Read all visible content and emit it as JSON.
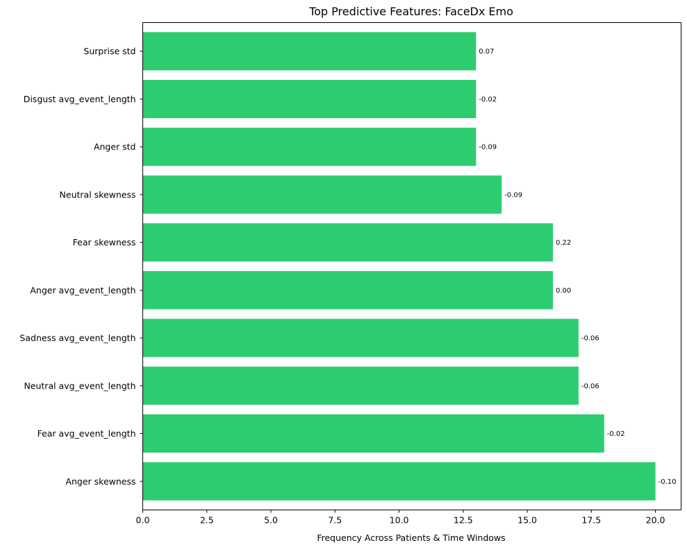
{
  "chart_data": {
    "type": "bar",
    "orientation": "horizontal",
    "title": "Top Predictive Features: FaceDx Emo",
    "xlabel": "Frequency Across Patients & Time Windows",
    "ylabel": "",
    "xlim": [
      0,
      21
    ],
    "xticks": [
      "0.0",
      "2.5",
      "5.0",
      "7.5",
      "10.0",
      "12.5",
      "15.0",
      "17.5",
      "20.0"
    ],
    "xtick_values": [
      0,
      2.5,
      5,
      7.5,
      10,
      12.5,
      15,
      17.5,
      20
    ],
    "grid": false,
    "bar_color": "#2ecc71",
    "categories": [
      "Surprise std",
      "Disgust avg_event_length",
      "Anger std",
      "Neutral skewness",
      "Fear skewness",
      "Anger avg_event_length",
      "Sadness avg_event_length",
      "Neutral avg_event_length",
      "Fear avg_event_length",
      "Anger skewness"
    ],
    "values": [
      13,
      13,
      13,
      14,
      16,
      16,
      17,
      17,
      18,
      20
    ],
    "data_labels": [
      "0.07",
      "-0.02",
      "-0.09",
      "-0.09",
      "0.22",
      "0.00",
      "-0.06",
      "-0.06",
      "-0.02",
      "-0.10"
    ]
  }
}
